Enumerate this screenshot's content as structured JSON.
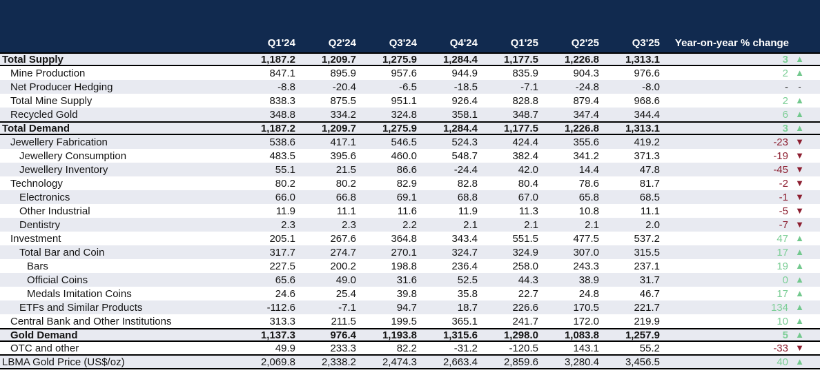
{
  "table": {
    "yoy_header": "Year-on-year % change",
    "columns": [
      "Q1'24",
      "Q2'24",
      "Q3'24",
      "Q4'24",
      "Q1'25",
      "Q2'25",
      "Q3'25"
    ],
    "rows": [
      {
        "label": "Total Supply",
        "indent": 0,
        "bold": true,
        "shaded": true,
        "border_top": true,
        "border_bottom": true,
        "values": [
          "1,187.2",
          "1,209.7",
          "1,275.9",
          "1,284.4",
          "1,177.5",
          "1,226.8",
          "1,313.1"
        ],
        "yoy": "3",
        "yoy_dir": "up"
      },
      {
        "label": "Mine Production",
        "indent": 1,
        "bold": false,
        "shaded": false,
        "values": [
          "847.1",
          "895.9",
          "957.6",
          "944.9",
          "835.9",
          "904.3",
          "976.6"
        ],
        "yoy": "2",
        "yoy_dir": "up"
      },
      {
        "label": "Net Producer Hedging",
        "indent": 1,
        "bold": false,
        "shaded": true,
        "values": [
          "-8.8",
          "-20.4",
          "-6.5",
          "-18.5",
          "-7.1",
          "-24.8",
          "-8.0"
        ],
        "yoy": "-",
        "yoy_dir": "none"
      },
      {
        "label": "Total Mine Supply",
        "indent": 1,
        "bold": false,
        "shaded": false,
        "values": [
          "838.3",
          "875.5",
          "951.1",
          "926.4",
          "828.8",
          "879.4",
          "968.6"
        ],
        "yoy": "2",
        "yoy_dir": "up"
      },
      {
        "label": "Recycled Gold",
        "indent": 1,
        "bold": false,
        "shaded": true,
        "values": [
          "348.8",
          "334.2",
          "324.8",
          "358.1",
          "348.7",
          "347.4",
          "344.4"
        ],
        "yoy": "6",
        "yoy_dir": "up"
      },
      {
        "label": "Total Demand",
        "indent": 0,
        "bold": true,
        "shaded": true,
        "border_top": true,
        "border_bottom": true,
        "values": [
          "1,187.2",
          "1,209.7",
          "1,275.9",
          "1,284.4",
          "1,177.5",
          "1,226.8",
          "1,313.1"
        ],
        "yoy": "3",
        "yoy_dir": "up"
      },
      {
        "label": "Jewellery Fabrication",
        "indent": 1,
        "bold": false,
        "shaded": true,
        "values": [
          "538.6",
          "417.1",
          "546.5",
          "524.3",
          "424.4",
          "355.6",
          "419.2"
        ],
        "yoy": "-23",
        "yoy_dir": "down"
      },
      {
        "label": "Jewellery Consumption",
        "indent": 2,
        "bold": false,
        "shaded": false,
        "values": [
          "483.5",
          "395.6",
          "460.0",
          "548.7",
          "382.4",
          "341.2",
          "371.3"
        ],
        "yoy": "-19",
        "yoy_dir": "down"
      },
      {
        "label": "Jewellery Inventory",
        "indent": 2,
        "bold": false,
        "shaded": true,
        "values": [
          "55.1",
          "21.5",
          "86.6",
          "-24.4",
          "42.0",
          "14.4",
          "47.8"
        ],
        "yoy": "-45",
        "yoy_dir": "down"
      },
      {
        "label": "Technology",
        "indent": 1,
        "bold": false,
        "shaded": false,
        "values": [
          "80.2",
          "80.2",
          "82.9",
          "82.8",
          "80.4",
          "78.6",
          "81.7"
        ],
        "yoy": "-2",
        "yoy_dir": "down"
      },
      {
        "label": "Electronics",
        "indent": 2,
        "bold": false,
        "shaded": true,
        "values": [
          "66.0",
          "66.8",
          "69.1",
          "68.8",
          "67.0",
          "65.8",
          "68.5"
        ],
        "yoy": "-1",
        "yoy_dir": "down"
      },
      {
        "label": "Other Industrial",
        "indent": 2,
        "bold": false,
        "shaded": false,
        "values": [
          "11.9",
          "11.1",
          "11.6",
          "11.9",
          "11.3",
          "10.8",
          "11.1"
        ],
        "yoy": "-5",
        "yoy_dir": "down"
      },
      {
        "label": "Dentistry",
        "indent": 2,
        "bold": false,
        "shaded": true,
        "values": [
          "2.3",
          "2.3",
          "2.2",
          "2.1",
          "2.1",
          "2.1",
          "2.0"
        ],
        "yoy": "-7",
        "yoy_dir": "down"
      },
      {
        "label": "Investment",
        "indent": 1,
        "bold": false,
        "shaded": false,
        "values": [
          "205.1",
          "267.6",
          "364.8",
          "343.4",
          "551.5",
          "477.5",
          "537.2"
        ],
        "yoy": "47",
        "yoy_dir": "up"
      },
      {
        "label": "Total Bar and Coin",
        "indent": 2,
        "bold": false,
        "shaded": true,
        "values": [
          "317.7",
          "274.7",
          "270.1",
          "324.7",
          "324.9",
          "307.0",
          "315.5"
        ],
        "yoy": "17",
        "yoy_dir": "up"
      },
      {
        "label": "Bars",
        "indent": 3,
        "bold": false,
        "shaded": false,
        "values": [
          "227.5",
          "200.2",
          "198.8",
          "236.4",
          "258.0",
          "243.3",
          "237.1"
        ],
        "yoy": "19",
        "yoy_dir": "up"
      },
      {
        "label": "Official Coins",
        "indent": 3,
        "bold": false,
        "shaded": true,
        "values": [
          "65.6",
          "49.0",
          "31.6",
          "52.5",
          "44.3",
          "38.9",
          "31.7"
        ],
        "yoy": "0",
        "yoy_dir": "up"
      },
      {
        "label": "Medals Imitation Coins",
        "indent": 3,
        "bold": false,
        "shaded": false,
        "values": [
          "24.6",
          "25.4",
          "39.8",
          "35.8",
          "22.7",
          "24.8",
          "46.7"
        ],
        "yoy": "17",
        "yoy_dir": "up"
      },
      {
        "label": "ETFs and Similar Products",
        "indent": 2,
        "bold": false,
        "shaded": true,
        "values": [
          "-112.6",
          "-7.1",
          "94.7",
          "18.7",
          "226.6",
          "170.5",
          "221.7"
        ],
        "yoy": "134",
        "yoy_dir": "up"
      },
      {
        "label": "Central Bank and Other Institutions",
        "indent": 1,
        "bold": false,
        "shaded": false,
        "values": [
          "313.3",
          "211.5",
          "199.5",
          "365.1",
          "241.7",
          "172.0",
          "219.9"
        ],
        "yoy": "10",
        "yoy_dir": "up"
      },
      {
        "label": "Gold Demand",
        "indent": 1,
        "bold": true,
        "shaded": true,
        "border_top": true,
        "border_bottom": true,
        "values": [
          "1,137.3",
          "976.4",
          "1,193.8",
          "1,315.6",
          "1,298.0",
          "1,083.8",
          "1,257.9"
        ],
        "yoy": "5",
        "yoy_dir": "up"
      },
      {
        "label": "OTC and other",
        "indent": 1,
        "bold": false,
        "shaded": false,
        "border_bottom": true,
        "values": [
          "49.9",
          "233.3",
          "82.2",
          "-31.2",
          "-120.5",
          "143.1",
          "55.2"
        ],
        "yoy": "-33",
        "yoy_dir": "down"
      },
      {
        "label": "LBMA Gold Price (US$/oz)",
        "indent": 0,
        "bold": false,
        "shaded": true,
        "border_bottom": true,
        "values": [
          "2,069.8",
          "2,338.2",
          "2,474.3",
          "2,663.4",
          "2,859.6",
          "3,280.4",
          "3,456.5"
        ],
        "yoy": "40",
        "yoy_dir": "up"
      }
    ]
  },
  "icons": {
    "up_triangle": "▲",
    "down_triangle": "▼"
  },
  "colors": {
    "header_bg": "#112A4F",
    "row_shade": "#E8EAF1",
    "positive": "#7CCE96",
    "positive_triangle": "#72C88D",
    "negative": "#8C1D2F",
    "negative_triangle": "#8C1D2F",
    "neutral": "#222222"
  }
}
